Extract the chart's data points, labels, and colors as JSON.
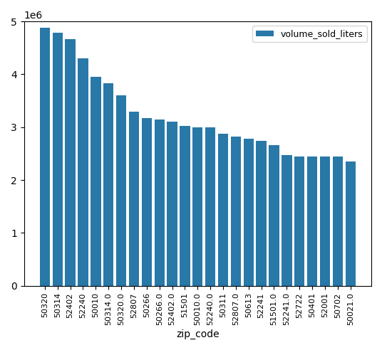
{
  "categories": [
    "50320",
    "50314",
    "52402",
    "52240",
    "50010",
    "50314.0",
    "50320.0",
    "52807",
    "50266",
    "50266.0",
    "52402.0",
    "51501",
    "50010.0",
    "52240.0",
    "50311",
    "52807.0",
    "50613",
    "52241",
    "51501.0",
    "52241.0",
    "52722",
    "50401",
    "52001",
    "50702",
    "50021.0"
  ],
  "values": [
    4880000,
    4790000,
    4660000,
    4300000,
    3950000,
    3830000,
    3600000,
    3290000,
    3175000,
    3140000,
    3105000,
    3030000,
    2990000,
    2995000,
    2880000,
    2825000,
    2785000,
    2740000,
    2660000,
    2465000,
    2440000,
    2440000,
    2440000,
    2440000,
    2355000
  ],
  "bar_color": "#2878a8",
  "xlabel": "zip_code",
  "legend_label": "volume_sold_liters",
  "ylim": [
    0,
    5000000
  ]
}
